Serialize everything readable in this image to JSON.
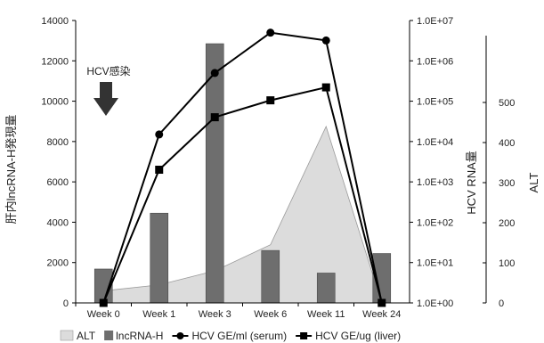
{
  "chart_data": {
    "type": "bar",
    "categories": [
      "Week 0",
      "Week 1",
      "Week 3",
      "Week 6",
      "Week 11",
      "Week 24"
    ],
    "axes": {
      "left": {
        "label": "肝内lncRNA-H発現量",
        "min": 0,
        "max": 14000,
        "ticks": [
          0,
          2000,
          4000,
          6000,
          8000,
          10000,
          12000,
          14000
        ]
      },
      "rna": {
        "label": "HCV RNA量",
        "scale": "log",
        "min": 1,
        "max": 10000000,
        "ticks": [
          1,
          10,
          100,
          1000,
          10000,
          100000,
          1000000,
          10000000
        ],
        "tick_labels": [
          "1.0E+00",
          "1.0E+01",
          "1.0E+02",
          "1.0E+03",
          "1.0E+04",
          "1.0E+05",
          "1.0E+06",
          "1.0E+07"
        ]
      },
      "alt": {
        "label": "ALT",
        "min": 0,
        "max": 600,
        "ticks": [
          0,
          100,
          200,
          300,
          400,
          500
        ],
        "tick_labels": [
          "0",
          "100",
          "200",
          "300",
          "400",
          "500"
        ]
      }
    },
    "series": [
      {
        "name": "ALT",
        "kind": "area",
        "axis": "alt",
        "values": [
          30,
          45,
          80,
          145,
          440,
          0
        ],
        "color": "#dcdcdc"
      },
      {
        "name": "lncRNA-H",
        "kind": "bar",
        "axis": "left",
        "values": [
          1680,
          4450,
          12850,
          2600,
          1480,
          2450
        ],
        "color": "#6e6e6e"
      },
      {
        "name": "HCV GE/ml (serum)",
        "kind": "line",
        "marker": "circle",
        "axis": "rna",
        "values": [
          1,
          15000,
          500000,
          5000000,
          3200000,
          1
        ],
        "color": "#000000"
      },
      {
        "name": "HCV GE/ug (liver)",
        "kind": "line",
        "marker": "square",
        "axis": "rna",
        "values": [
          1,
          2000,
          40000,
          105000,
          220000,
          1
        ],
        "color": "#000000"
      }
    ],
    "annotation": {
      "text": "HCV感染",
      "category": "Week 0"
    },
    "legend_position": "bottom",
    "grid": false
  }
}
